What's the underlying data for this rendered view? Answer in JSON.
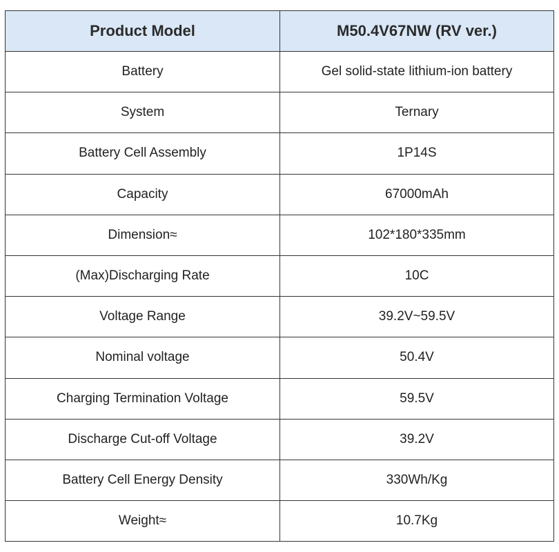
{
  "table": {
    "header": {
      "col1": "Product Model",
      "col2": "M50.4V67NW (RV ver.)"
    },
    "rows": [
      {
        "label": "Battery",
        "value": "Gel solid-state lithium-ion battery"
      },
      {
        "label": "System",
        "value": "Ternary"
      },
      {
        "label": "Battery Cell Assembly",
        "value": "1P14S"
      },
      {
        "label": "Capacity",
        "value": "67000mAh"
      },
      {
        "label": "Dimension≈",
        "value": "102*180*335mm"
      },
      {
        "label": "(Max)Discharging Rate",
        "value": "10C"
      },
      {
        "label": "Voltage Range",
        "value": "39.2V~59.5V"
      },
      {
        "label": "Nominal voltage",
        "value": "50.4V"
      },
      {
        "label": "Charging Termination Voltage",
        "value": "59.5V"
      },
      {
        "label": "Discharge Cut-off Voltage",
        "value": "39.2V"
      },
      {
        "label": "Battery Cell Energy Density",
        "value": "330Wh/Kg"
      },
      {
        "label": "Weight≈",
        "value": "10.7Kg"
      }
    ],
    "colors": {
      "header_background": "#d9e7f6",
      "border": "#333333",
      "text": "#222222"
    }
  }
}
